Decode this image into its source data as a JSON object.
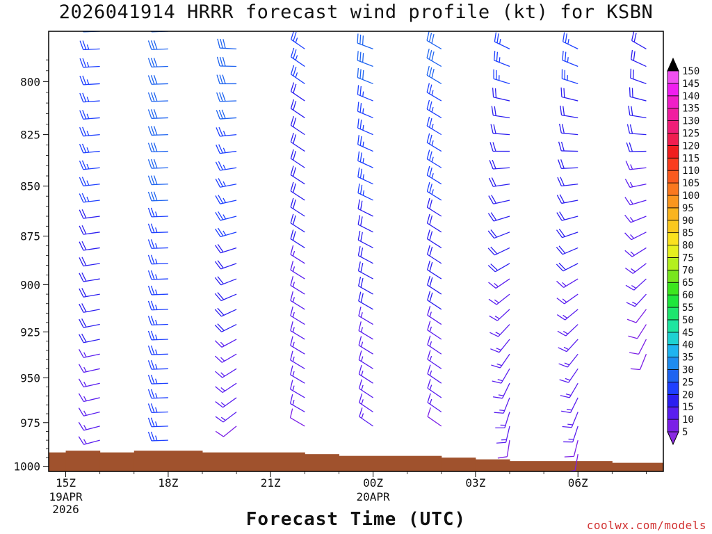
{
  "title": "2026041914 HRRR forecast wind profile (kt) for KSBN",
  "credit": "coolwx.com/models",
  "chart_data": {
    "type": "wind_barb_time_height",
    "title": "2026041914 HRRR forecast wind profile (kt) for KSBN",
    "xlabel": "Forecast Time (UTC)",
    "ylabel": "",
    "units": "kt",
    "time_range_hours": [
      14.5,
      32.5
    ],
    "ylim": [
      777,
      1003
    ],
    "y_ticks": [
      800,
      825,
      850,
      875,
      900,
      925,
      950,
      975,
      1000
    ],
    "x_ticks": [
      {
        "hour": 15,
        "label": "15Z",
        "sub": [
          "19APR",
          "2026"
        ]
      },
      {
        "hour": 18,
        "label": "18Z",
        "sub": []
      },
      {
        "hour": 21,
        "label": "21Z",
        "sub": []
      },
      {
        "hour": 24,
        "label": "00Z",
        "sub": [
          "20APR"
        ]
      },
      {
        "hour": 27,
        "label": "03Z",
        "sub": []
      },
      {
        "hour": 30,
        "label": "06Z",
        "sub": []
      }
    ],
    "colorbar": {
      "levels": [
        5,
        10,
        15,
        20,
        25,
        30,
        35,
        40,
        45,
        50,
        55,
        60,
        65,
        70,
        75,
        80,
        85,
        90,
        95,
        100,
        105,
        110,
        115,
        120,
        125,
        130,
        135,
        140,
        145,
        150
      ],
      "colors": [
        "#8a2be2",
        "#7b1fe6",
        "#5a1ef0",
        "#2c1ef0",
        "#1e40ff",
        "#1e64f0",
        "#1e8cf0",
        "#1eb4f0",
        "#1ed2d2",
        "#1ee6a0",
        "#1ee66e",
        "#1ee63c",
        "#3ce61e",
        "#78e61e",
        "#b4f01e",
        "#e6f01e",
        "#fae11e",
        "#fac81e",
        "#fab41e",
        "#fa961e",
        "#fa781e",
        "#fa5a1e",
        "#fa3c1e",
        "#f01e1e",
        "#f01e50",
        "#f01e78",
        "#f01ea0",
        "#f01ec8",
        "#f01ef0",
        "#f050f0"
      ]
    },
    "terrain": [
      {
        "t0": 14.5,
        "t1": 15,
        "p": 992
      },
      {
        "t0": 15,
        "t1": 16,
        "p": 991
      },
      {
        "t0": 16,
        "t1": 17,
        "p": 992
      },
      {
        "t0": 17,
        "t1": 19,
        "p": 991
      },
      {
        "t0": 19,
        "t1": 22,
        "p": 992
      },
      {
        "t0": 22,
        "t1": 23,
        "p": 993
      },
      {
        "t0": 23,
        "t1": 26,
        "p": 994
      },
      {
        "t0": 26,
        "t1": 27,
        "p": 995
      },
      {
        "t0": 27,
        "t1": 28,
        "p": 996
      },
      {
        "t0": 28,
        "t1": 31,
        "p": 997
      },
      {
        "t0": 31,
        "t1": 32.5,
        "p": 998
      }
    ],
    "series": [
      {
        "hour": 16,
        "top": 777,
        "bottom": 986,
        "dir_top": 268,
        "dir_bottom": 255,
        "spd_top": 28,
        "spd_bottom": 14
      },
      {
        "hour": 18,
        "top": 777,
        "bottom": 987,
        "dir_top": 268,
        "dir_bottom": 268,
        "spd_top": 30,
        "spd_bottom": 24
      },
      {
        "hour": 20,
        "top": 777,
        "bottom": 982,
        "dir_top": 275,
        "dir_bottom": 230,
        "spd_top": 32,
        "spd_bottom": 12
      },
      {
        "hour": 22,
        "top": 777,
        "bottom": 982,
        "dir_top": 305,
        "dir_bottom": 300,
        "spd_top": 24,
        "spd_bottom": 12
      },
      {
        "hour": 24,
        "top": 777,
        "bottom": 983,
        "dir_top": 290,
        "dir_bottom": 305,
        "spd_top": 30,
        "spd_bottom": 12
      },
      {
        "hour": 26,
        "top": 777,
        "bottom": 982,
        "dir_top": 300,
        "dir_bottom": 305,
        "spd_top": 30,
        "spd_bottom": 12
      },
      {
        "hour": 28,
        "top": 777,
        "bottom": 992,
        "dir_top": 300,
        "dir_bottom": 185,
        "spd_top": 24,
        "spd_bottom": 12
      },
      {
        "hour": 30,
        "top": 777,
        "bottom": 993,
        "dir_top": 300,
        "dir_bottom": 190,
        "spd_top": 24,
        "spd_bottom": 12
      },
      {
        "hour": 32,
        "top": 777,
        "bottom": 940,
        "dir_top": 305,
        "dir_bottom": 200,
        "spd_top": 22,
        "spd_bottom": 10
      }
    ]
  }
}
